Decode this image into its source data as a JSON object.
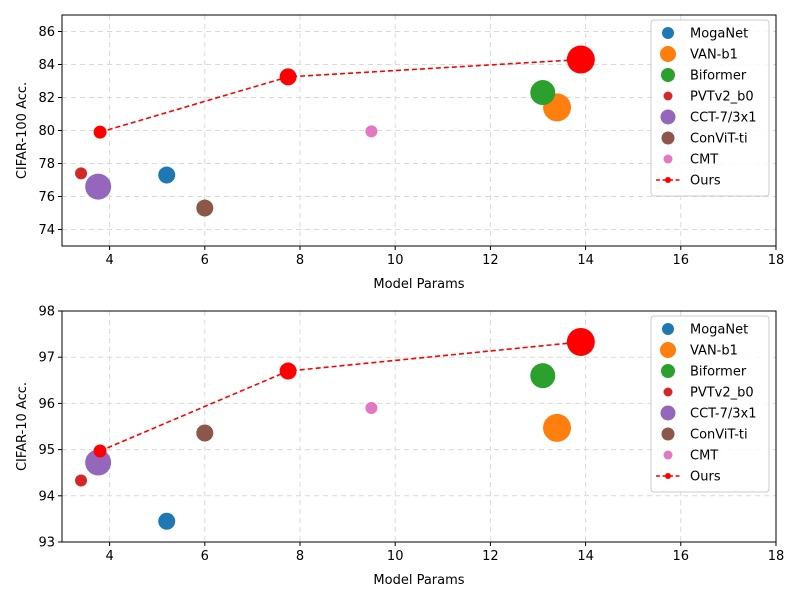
{
  "colors": {
    "MogaNet": "#1f77b4",
    "VAN-b1": "#ff7f0e",
    "Biformer": "#2ca02c",
    "PVTv2_b0": "#d62728",
    "CCT-7/3x1": "#9467bd",
    "ConViT-ti": "#8c564b",
    "CMT": "#e377c2",
    "Ours": "#ff0000"
  },
  "chart_data": [
    {
      "type": "scatter",
      "xlabel": "Model Params",
      "ylabel": "CIFAR-100 Acc.",
      "xlim": [
        3,
        18
      ],
      "ylim": [
        73,
        87
      ],
      "xticks": [
        4,
        6,
        8,
        10,
        12,
        14,
        16,
        18
      ],
      "yticks": [
        74,
        76,
        78,
        80,
        82,
        84,
        86
      ],
      "grid": true,
      "legend_position": "top-right",
      "series": [
        {
          "name": "MogaNet",
          "points": [
            {
              "x": 5.2,
              "y": 77.3,
              "size": 17
            }
          ]
        },
        {
          "name": "VAN-b1",
          "points": [
            {
              "x": 13.4,
              "y": 81.4,
              "size": 28
            }
          ]
        },
        {
          "name": "Biformer",
          "points": [
            {
              "x": 13.1,
              "y": 82.3,
              "size": 25
            }
          ]
        },
        {
          "name": "PVTv2_b0",
          "points": [
            {
              "x": 3.4,
              "y": 77.4,
              "size": 12
            }
          ]
        },
        {
          "name": "CCT-7/3x1",
          "points": [
            {
              "x": 3.76,
              "y": 76.6,
              "size": 26
            }
          ]
        },
        {
          "name": "ConViT-ti",
          "points": [
            {
              "x": 6.0,
              "y": 75.3,
              "size": 17
            }
          ]
        },
        {
          "name": "CMT",
          "points": [
            {
              "x": 9.5,
              "y": 79.95,
              "size": 12
            }
          ]
        },
        {
          "name": "Ours",
          "line": true,
          "points": [
            {
              "x": 3.8,
              "y": 79.9,
              "size": 13
            },
            {
              "x": 7.75,
              "y": 83.25,
              "size": 17
            },
            {
              "x": 13.9,
              "y": 84.3,
              "size": 28
            }
          ]
        }
      ]
    },
    {
      "type": "scatter",
      "xlabel": "Model Params",
      "ylabel": "CIFAR-10 Acc.",
      "xlim": [
        3,
        18
      ],
      "ylim": [
        93,
        98
      ],
      "xticks": [
        4,
        6,
        8,
        10,
        12,
        14,
        16,
        18
      ],
      "yticks": [
        93,
        94,
        95,
        96,
        97,
        98
      ],
      "grid": true,
      "legend_position": "top-right",
      "series": [
        {
          "name": "MogaNet",
          "points": [
            {
              "x": 5.2,
              "y": 93.45,
              "size": 17
            }
          ]
        },
        {
          "name": "VAN-b1",
          "points": [
            {
              "x": 13.4,
              "y": 95.47,
              "size": 28
            }
          ]
        },
        {
          "name": "Biformer",
          "points": [
            {
              "x": 13.1,
              "y": 96.6,
              "size": 25
            }
          ]
        },
        {
          "name": "PVTv2_b0",
          "points": [
            {
              "x": 3.4,
              "y": 94.33,
              "size": 12
            }
          ]
        },
        {
          "name": "CCT-7/3x1",
          "points": [
            {
              "x": 3.76,
              "y": 94.72,
              "size": 26
            }
          ]
        },
        {
          "name": "ConViT-ti",
          "points": [
            {
              "x": 6.0,
              "y": 95.36,
              "size": 17
            }
          ]
        },
        {
          "name": "CMT",
          "points": [
            {
              "x": 9.5,
              "y": 95.9,
              "size": 12
            }
          ]
        },
        {
          "name": "Ours",
          "line": true,
          "points": [
            {
              "x": 3.8,
              "y": 94.97,
              "size": 13
            },
            {
              "x": 7.75,
              "y": 96.7,
              "size": 17
            },
            {
              "x": 13.9,
              "y": 97.33,
              "size": 28
            }
          ]
        }
      ]
    }
  ],
  "legend": [
    "MogaNet",
    "VAN-b1",
    "Biformer",
    "PVTv2_b0",
    "CCT-7/3x1",
    "ConViT-ti",
    "CMT",
    "Ours"
  ]
}
